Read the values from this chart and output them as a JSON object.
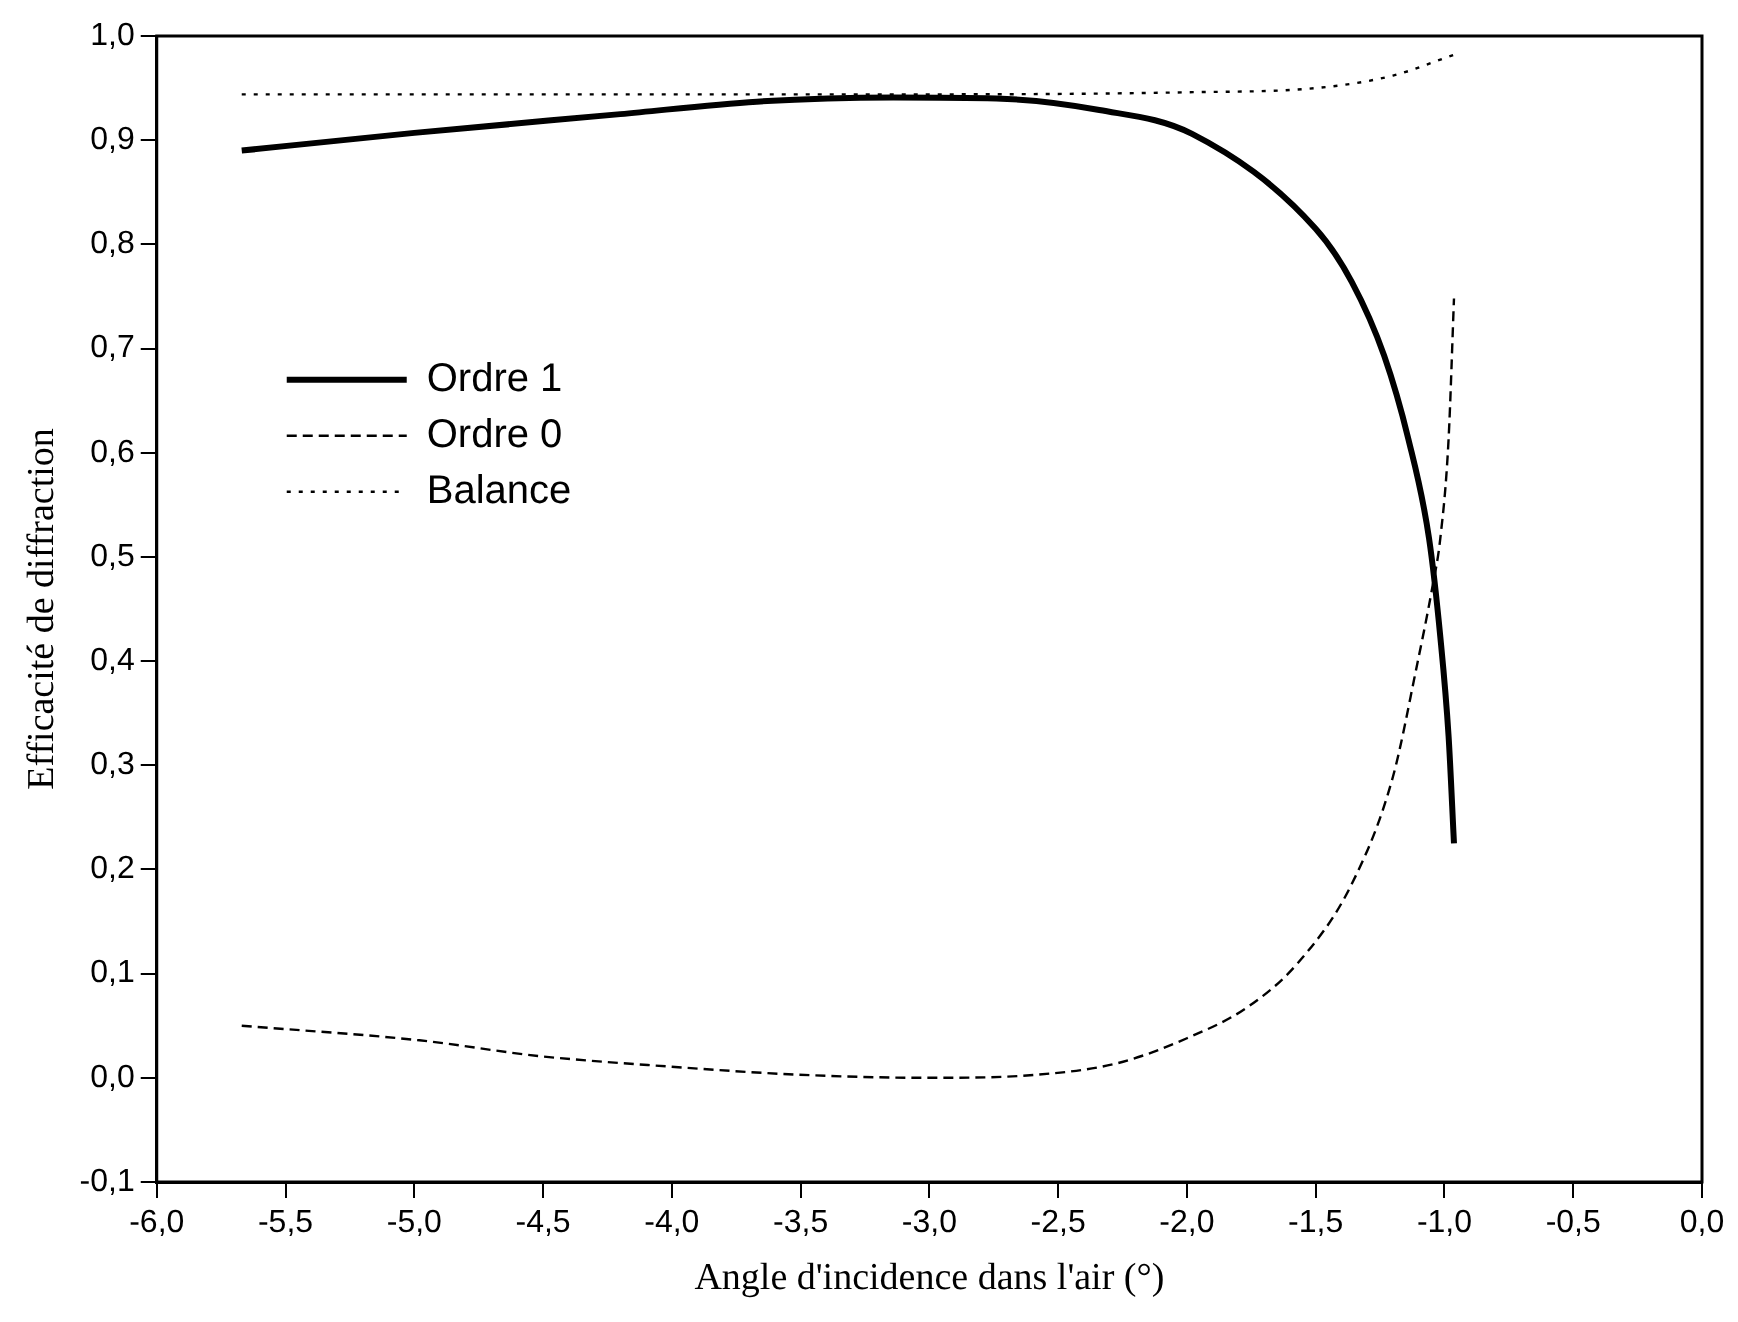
{
  "chart_data": {
    "type": "line",
    "xlabel": "Angle d'incidence dans l'air (°)",
    "ylabel": "Efficacité de diffraction",
    "xlim": [
      -6,
      0
    ],
    "ylim": [
      -0.1,
      1
    ],
    "xticks": [
      {
        "value": -6,
        "label": "-6,0"
      },
      {
        "value": -5.5,
        "label": "-5,5"
      },
      {
        "value": -5,
        "label": "-5,0"
      },
      {
        "value": -4.5,
        "label": "-4,5"
      },
      {
        "value": -4,
        "label": "-4,0"
      },
      {
        "value": -3.5,
        "label": "-3,5"
      },
      {
        "value": -3,
        "label": "-3,0"
      },
      {
        "value": -2.5,
        "label": "-2,5"
      },
      {
        "value": -2,
        "label": "-2,0"
      },
      {
        "value": -1.5,
        "label": "-1,5"
      },
      {
        "value": -1,
        "label": "-1,0"
      },
      {
        "value": -0.5,
        "label": "-0,5"
      },
      {
        "value": 0,
        "label": "0,0"
      }
    ],
    "yticks": [
      {
        "value": -0.1,
        "label": "-0,1"
      },
      {
        "value": 0,
        "label": "0,0"
      },
      {
        "value": 0.1,
        "label": "0,1"
      },
      {
        "value": 0.2,
        "label": "0,2"
      },
      {
        "value": 0.3,
        "label": "0,3"
      },
      {
        "value": 0.4,
        "label": "0,4"
      },
      {
        "value": 0.5,
        "label": "0,5"
      },
      {
        "value": 0.6,
        "label": "0,6"
      },
      {
        "value": 0.7,
        "label": "0,7"
      },
      {
        "value": 0.8,
        "label": "0,8"
      },
      {
        "value": 0.9,
        "label": "0,9"
      },
      {
        "value": 1,
        "label": "1,0"
      }
    ],
    "grid": false,
    "legend": "left",
    "marker": "none",
    "series": [
      {
        "name": "Ordre 1",
        "color": "#000000",
        "line_style": "solid",
        "x": [
          -5.67,
          -5.0,
          -4.2,
          -3.67,
          -3.14,
          -2.74,
          -2.34,
          -1.98,
          -1.5,
          -1.36,
          -1.234,
          -1.14,
          -1.06,
          -1.016,
          -0.984,
          -0.963
        ],
        "values": [
          0.89,
          0.907,
          0.925,
          0.937,
          0.941,
          0.94,
          0.929,
          0.906,
          0.815,
          0.764,
          0.693,
          0.613,
          0.518,
          0.423,
          0.328,
          0.225
        ]
      },
      {
        "name": "Ordre 0",
        "color": "#000000",
        "line_style": "dashed",
        "x": [
          -5.67,
          -4.98,
          -4.52,
          -4.02,
          -3.51,
          -3.0,
          -2.58,
          -2.27,
          -2.0,
          -1.77,
          -1.57,
          -1.36,
          -1.2,
          -1.11,
          -1.047,
          -1.016,
          -0.984,
          -0.963
        ],
        "values": [
          0.05,
          0.036,
          0.021,
          0.011,
          0.003,
          0.0,
          0.003,
          0.014,
          0.038,
          0.067,
          0.11,
          0.186,
          0.289,
          0.392,
          0.471,
          0.518,
          0.613,
          0.748
        ]
      },
      {
        "name": "Balance",
        "color": "#000000",
        "line_style": "dotted",
        "x": [
          -5.67,
          -4.0,
          -3.0,
          -2.0,
          -1.5,
          -1.2,
          -0.963
        ],
        "values": [
          0.944,
          0.944,
          0.944,
          0.946,
          0.95,
          0.962,
          0.982
        ]
      }
    ]
  }
}
